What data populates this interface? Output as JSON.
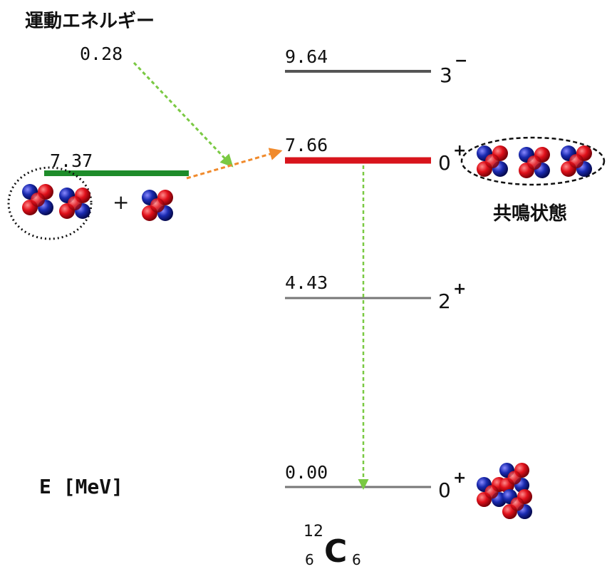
{
  "kinetic_energy": {
    "label": "運動エネルギー",
    "value": "0.28"
  },
  "threshold": {
    "energy": "7.37",
    "plus": "+"
  },
  "levels": [
    {
      "energy": "9.64",
      "spin": "3",
      "parity": "−"
    },
    {
      "energy": "7.66",
      "spin": "0",
      "parity": "+",
      "note": "共鳴状態"
    },
    {
      "energy": "4.43",
      "spin": "2",
      "parity": "+"
    },
    {
      "energy": "0.00",
      "spin": "0",
      "parity": "+"
    }
  ],
  "axis_label": "E [MeV]",
  "nucleus": {
    "mass_number": "12",
    "symbol": "C",
    "atomic_number": "6",
    "neutron_number": "6"
  }
}
